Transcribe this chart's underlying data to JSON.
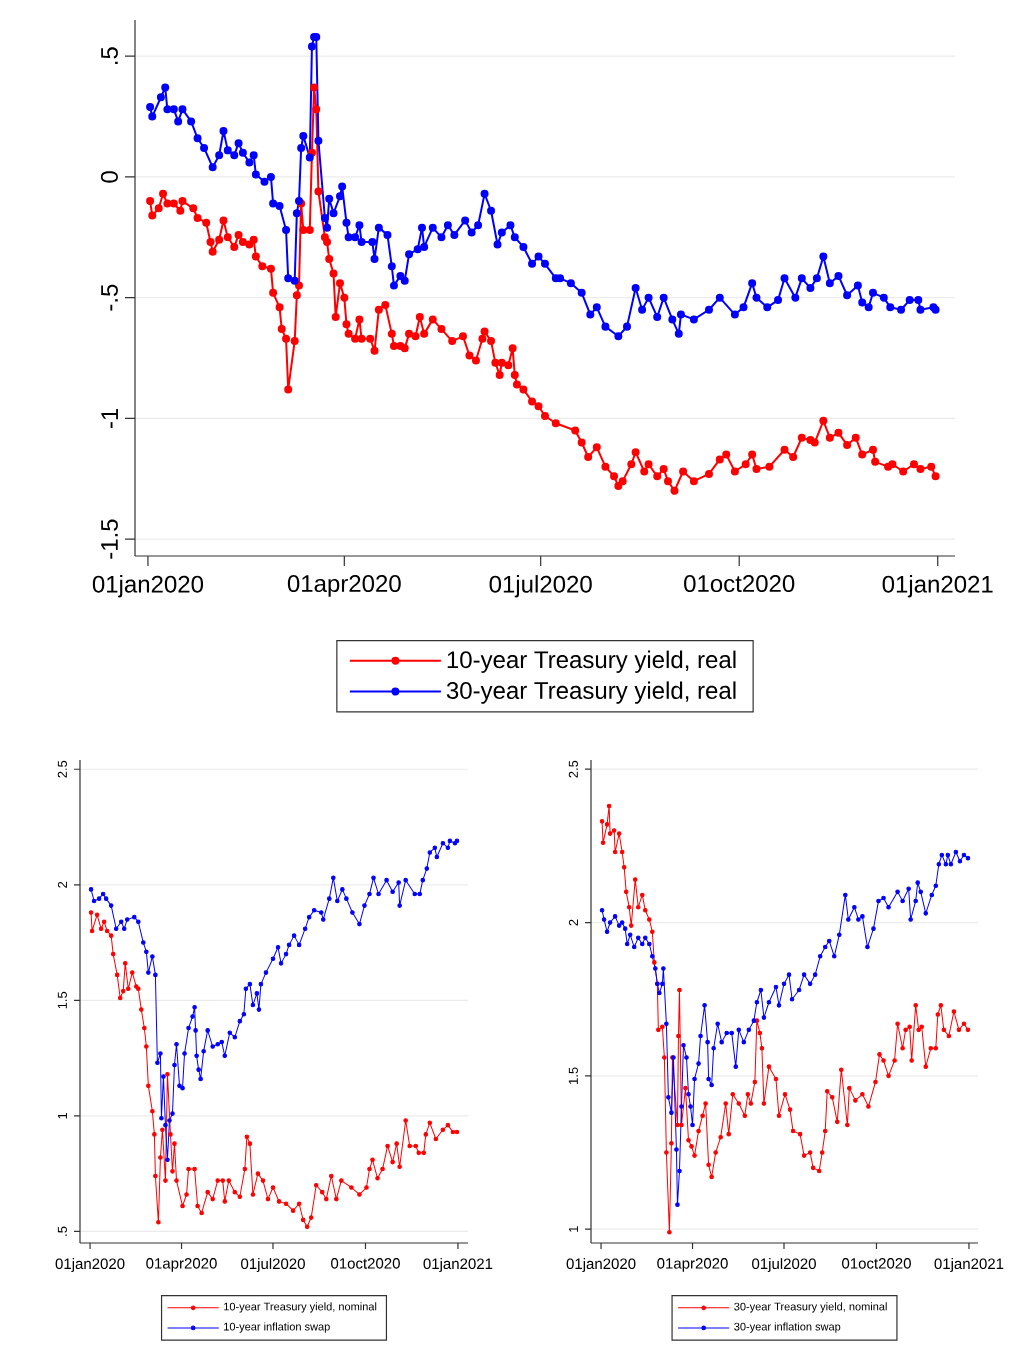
{
  "chart_data": [
    {
      "type": "line",
      "xlim": [
        "2019-12-26",
        "2021-01-09"
      ],
      "ylim": [
        -1.57,
        0.65
      ],
      "xticks": [
        {
          "value": "2020-01-01",
          "label": "01jan2020"
        },
        {
          "value": "2020-04-01",
          "label": "01apr2020"
        },
        {
          "value": "2020-07-01",
          "label": "01jul2020"
        },
        {
          "value": "2020-10-01",
          "label": "01oct2020"
        },
        {
          "value": "2021-01-01",
          "label": "01jan2021"
        }
      ],
      "yticks": [
        {
          "value": 0.5,
          "label": ".5"
        },
        0,
        {
          "value": -0.5,
          "label": "-.5"
        },
        -1,
        {
          "value": -1.5,
          "label": "-1.5"
        }
      ],
      "grid": "y",
      "legend": "bottom",
      "marker": "circle",
      "line_style": "solid",
      "series": [
        {
          "name": "10-year Treasury yield, real",
          "color": "#ff0000",
          "x": [
            "2020-01-02",
            "2020-01-03",
            "2020-01-06",
            "2020-01-08",
            "2020-01-10",
            "2020-01-13",
            "2020-01-16",
            "2020-01-17",
            "2020-01-22",
            "2020-01-24",
            "2020-01-28",
            "2020-01-30",
            "2020-01-31",
            "2020-02-03",
            "2020-02-05",
            "2020-02-07",
            "2020-02-10",
            "2020-02-12",
            "2020-02-14",
            "2020-02-17",
            "2020-02-19",
            "2020-02-20",
            "2020-02-23",
            "2020-02-27",
            "2020-02-28",
            "2020-03-02",
            "2020-03-03",
            "2020-03-05",
            "2020-03-06",
            "2020-03-09",
            "2020-03-10",
            "2020-03-11",
            "2020-03-12",
            "2020-03-13",
            "2020-03-16",
            "2020-03-17",
            "2020-03-18",
            "2020-03-19",
            "2020-03-20",
            "2020-03-23",
            "2020-03-24",
            "2020-03-25",
            "2020-03-27",
            "2020-03-28",
            "2020-03-30",
            "2020-04-01",
            "2020-04-02",
            "2020-04-03",
            "2020-04-06",
            "2020-04-08",
            "2020-04-09",
            "2020-04-13",
            "2020-04-15",
            "2020-04-17",
            "2020-04-20",
            "2020-04-23",
            "2020-04-24",
            "2020-04-27",
            "2020-04-29",
            "2020-05-01",
            "2020-05-04",
            "2020-05-06",
            "2020-05-08",
            "2020-05-12",
            "2020-05-16",
            "2020-05-21",
            "2020-05-26",
            "2020-05-29",
            "2020-06-01",
            "2020-06-04",
            "2020-06-05",
            "2020-06-08",
            "2020-06-10",
            "2020-06-12",
            "2020-06-13",
            "2020-06-16",
            "2020-06-18",
            "2020-06-19",
            "2020-06-20",
            "2020-06-23",
            "2020-06-27",
            "2020-06-30",
            "2020-07-03",
            "2020-07-08",
            "2020-07-17",
            "2020-07-20",
            "2020-07-23",
            "2020-07-27",
            "2020-07-31",
            "2020-08-04",
            "2020-08-06",
            "2020-08-08",
            "2020-08-12",
            "2020-08-14",
            "2020-08-18",
            "2020-08-20",
            "2020-08-24",
            "2020-08-27",
            "2020-08-29",
            "2020-09-01",
            "2020-09-05",
            "2020-09-10",
            "2020-09-17",
            "2020-09-22",
            "2020-09-25",
            "2020-09-29",
            "2020-10-04",
            "2020-10-07",
            "2020-10-09",
            "2020-10-15",
            "2020-10-22",
            "2020-10-26",
            "2020-10-30",
            "2020-11-03",
            "2020-11-05",
            "2020-11-09",
            "2020-11-12",
            "2020-11-16",
            "2020-11-20",
            "2020-11-24",
            "2020-11-27",
            "2020-12-02",
            "2020-12-03",
            "2020-12-09",
            "2020-12-11",
            "2020-12-16",
            "2020-12-21",
            "2020-12-24",
            "2020-12-29",
            "2020-12-31"
          ],
          "values": [
            -0.1,
            -0.16,
            -0.13,
            -0.07,
            -0.11,
            -0.11,
            -0.14,
            -0.1,
            -0.13,
            -0.17,
            -0.19,
            -0.27,
            -0.31,
            -0.26,
            -0.18,
            -0.25,
            -0.29,
            -0.24,
            -0.27,
            -0.28,
            -0.26,
            -0.33,
            -0.37,
            -0.38,
            -0.48,
            -0.54,
            -0.63,
            -0.67,
            -0.88,
            -0.68,
            -0.49,
            -0.45,
            -0.11,
            -0.22,
            -0.22,
            0.1,
            0.37,
            0.28,
            -0.06,
            -0.25,
            -0.27,
            -0.34,
            -0.4,
            -0.58,
            -0.44,
            -0.5,
            -0.61,
            -0.65,
            -0.67,
            -0.59,
            -0.67,
            -0.67,
            -0.72,
            -0.55,
            -0.53,
            -0.65,
            -0.7,
            -0.7,
            -0.71,
            -0.65,
            -0.66,
            -0.58,
            -0.65,
            -0.59,
            -0.63,
            -0.68,
            -0.66,
            -0.74,
            -0.76,
            -0.67,
            -0.64,
            -0.68,
            -0.77,
            -0.82,
            -0.77,
            -0.78,
            -0.71,
            -0.82,
            -0.86,
            -0.88,
            -0.93,
            -0.95,
            -0.99,
            -1.02,
            -1.05,
            -1.1,
            -1.16,
            -1.12,
            -1.2,
            -1.24,
            -1.28,
            -1.26,
            -1.19,
            -1.14,
            -1.22,
            -1.19,
            -1.24,
            -1.21,
            -1.26,
            -1.3,
            -1.22,
            -1.26,
            -1.23,
            -1.17,
            -1.15,
            -1.22,
            -1.19,
            -1.15,
            -1.21,
            -1.2,
            -1.13,
            -1.16,
            -1.08,
            -1.09,
            -1.1,
            -1.01,
            -1.08,
            -1.06,
            -1.11,
            -1.08,
            -1.15,
            -1.13,
            -1.18,
            -1.2,
            -1.19,
            -1.22,
            -1.19,
            -1.21,
            -1.2,
            -1.24
          ]
        },
        {
          "name": "30-year Treasury yield, real",
          "color": "#0000ff",
          "x": [
            "2020-01-02",
            "2020-01-03",
            "2020-01-07",
            "2020-01-09",
            "2020-01-10",
            "2020-01-13",
            "2020-01-15",
            "2020-01-17",
            "2020-01-21",
            "2020-01-24",
            "2020-01-27",
            "2020-01-31",
            "2020-02-03",
            "2020-02-05",
            "2020-02-07",
            "2020-02-10",
            "2020-02-12",
            "2020-02-14",
            "2020-02-17",
            "2020-02-19",
            "2020-02-20",
            "2020-02-24",
            "2020-02-27",
            "2020-02-28",
            "2020-03-02",
            "2020-03-05",
            "2020-03-06",
            "2020-03-09",
            "2020-03-10",
            "2020-03-11",
            "2020-03-12",
            "2020-03-13",
            "2020-03-16",
            "2020-03-17",
            "2020-03-18",
            "2020-03-19",
            "2020-03-20",
            "2020-03-23",
            "2020-03-24",
            "2020-03-25",
            "2020-03-27",
            "2020-03-30",
            "2020-03-31",
            "2020-04-02",
            "2020-04-03",
            "2020-04-06",
            "2020-04-08",
            "2020-04-09",
            "2020-04-14",
            "2020-04-15",
            "2020-04-17",
            "2020-04-21",
            "2020-04-23",
            "2020-04-24",
            "2020-04-27",
            "2020-04-29",
            "2020-05-01",
            "2020-05-05",
            "2020-05-07",
            "2020-05-08",
            "2020-05-12",
            "2020-05-16",
            "2020-05-19",
            "2020-05-22",
            "2020-05-27",
            "2020-05-30",
            "2020-06-02",
            "2020-06-05",
            "2020-06-08",
            "2020-06-11",
            "2020-06-13",
            "2020-06-17",
            "2020-06-19",
            "2020-06-23",
            "2020-06-27",
            "2020-06-30",
            "2020-07-03",
            "2020-07-08",
            "2020-07-10",
            "2020-07-15",
            "2020-07-20",
            "2020-07-24",
            "2020-07-27",
            "2020-07-31",
            "2020-08-06",
            "2020-08-10",
            "2020-08-14",
            "2020-08-17",
            "2020-08-20",
            "2020-08-24",
            "2020-08-27",
            "2020-08-31",
            "2020-09-03",
            "2020-09-04",
            "2020-09-10",
            "2020-09-17",
            "2020-09-22",
            "2020-09-29",
            "2020-10-03",
            "2020-10-07",
            "2020-10-09",
            "2020-10-14",
            "2020-10-19",
            "2020-10-22",
            "2020-10-27",
            "2020-10-30",
            "2020-11-03",
            "2020-11-06",
            "2020-11-09",
            "2020-11-12",
            "2020-11-16",
            "2020-11-20",
            "2020-11-25",
            "2020-11-27",
            "2020-11-30",
            "2020-12-02",
            "2020-12-07",
            "2020-12-10",
            "2020-12-15",
            "2020-12-19",
            "2020-12-23",
            "2020-12-24",
            "2020-12-30",
            "2020-12-31"
          ],
          "values": [
            0.29,
            0.25,
            0.33,
            0.37,
            0.28,
            0.28,
            0.23,
            0.28,
            0.23,
            0.16,
            0.12,
            0.04,
            0.09,
            0.19,
            0.11,
            0.09,
            0.14,
            0.1,
            0.06,
            0.09,
            0.01,
            -0.02,
            0.0,
            -0.11,
            -0.12,
            -0.22,
            -0.42,
            -0.43,
            -0.15,
            -0.1,
            0.12,
            0.17,
            0.08,
            0.54,
            0.58,
            0.58,
            0.15,
            -0.17,
            -0.21,
            -0.09,
            -0.15,
            -0.08,
            -0.04,
            -0.19,
            -0.25,
            -0.25,
            -0.2,
            -0.27,
            -0.27,
            -0.34,
            -0.21,
            -0.24,
            -0.37,
            -0.45,
            -0.41,
            -0.43,
            -0.32,
            -0.3,
            -0.21,
            -0.29,
            -0.21,
            -0.25,
            -0.2,
            -0.24,
            -0.18,
            -0.23,
            -0.2,
            -0.07,
            -0.14,
            -0.28,
            -0.23,
            -0.2,
            -0.25,
            -0.29,
            -0.36,
            -0.33,
            -0.36,
            -0.42,
            -0.42,
            -0.44,
            -0.48,
            -0.57,
            -0.54,
            -0.62,
            -0.66,
            -0.62,
            -0.46,
            -0.55,
            -0.5,
            -0.58,
            -0.5,
            -0.59,
            -0.65,
            -0.57,
            -0.59,
            -0.55,
            -0.5,
            -0.57,
            -0.54,
            -0.44,
            -0.5,
            -0.54,
            -0.51,
            -0.42,
            -0.5,
            -0.42,
            -0.46,
            -0.42,
            -0.33,
            -0.44,
            -0.41,
            -0.49,
            -0.45,
            -0.52,
            -0.54,
            -0.48,
            -0.5,
            -0.54,
            -0.55,
            -0.51,
            -0.51,
            -0.55,
            -0.54,
            -0.55
          ]
        }
      ]
    },
    {
      "type": "line",
      "xlim": [
        "2019-12-22",
        "2021-01-11"
      ],
      "ylim": [
        0.45,
        2.54
      ],
      "xticks": [
        {
          "value": "2020-01-01",
          "label": "01jan2020"
        },
        {
          "value": "2020-04-01",
          "label": "01apr2020"
        },
        {
          "value": "2020-07-01",
          "label": "01jul2020"
        },
        {
          "value": "2020-10-01",
          "label": "01oct2020"
        },
        {
          "value": "2021-01-01",
          "label": "01jan2021"
        }
      ],
      "yticks": [
        {
          "value": 0.5,
          "label": ".5"
        },
        1,
        1.5,
        2,
        2.5
      ],
      "grid": "y",
      "legend": "bottom",
      "marker": "circle",
      "line_style": "solid",
      "series": [
        {
          "name": "10-year Treasury yield, nominal",
          "color": "#ff0000",
          "x": [
            "2020-01-02",
            "2020-01-03",
            "2020-01-08",
            "2020-01-12",
            "2020-01-15",
            "2020-01-18",
            "2020-01-22",
            "2020-01-24",
            "2020-01-28",
            "2020-01-31",
            "2020-02-03",
            "2020-02-05",
            "2020-02-08",
            "2020-02-12",
            "2020-02-16",
            "2020-02-18",
            "2020-02-21",
            "2020-02-24",
            "2020-02-26",
            "2020-02-28",
            "2020-03-03",
            "2020-03-05",
            "2020-03-06",
            "2020-03-09",
            "2020-03-11",
            "2020-03-13",
            "2020-03-16",
            "2020-03-18",
            "2020-03-21",
            "2020-03-23",
            "2020-03-25",
            "2020-03-27",
            "2020-04-02",
            "2020-04-06",
            "2020-04-08",
            "2020-04-14",
            "2020-04-17",
            "2020-04-21",
            "2020-04-27",
            "2020-05-02",
            "2020-05-07",
            "2020-05-12",
            "2020-05-14",
            "2020-05-18",
            "2020-05-24",
            "2020-05-29",
            "2020-06-03",
            "2020-06-05",
            "2020-06-08",
            "2020-06-11",
            "2020-06-16",
            "2020-06-21",
            "2020-06-26",
            "2020-07-01",
            "2020-07-07",
            "2020-07-14",
            "2020-07-21",
            "2020-07-27",
            "2020-07-31",
            "2020-08-04",
            "2020-08-08",
            "2020-08-13",
            "2020-08-19",
            "2020-08-23",
            "2020-08-28",
            "2020-09-02",
            "2020-09-07",
            "2020-09-17",
            "2020-09-25",
            "2020-10-02",
            "2020-10-05",
            "2020-10-08",
            "2020-10-13",
            "2020-10-18",
            "2020-10-23",
            "2020-10-28",
            "2020-11-01",
            "2020-11-04",
            "2020-11-10",
            "2020-11-14",
            "2020-11-20",
            "2020-11-23",
            "2020-11-28",
            "2020-11-30",
            "2020-12-04",
            "2020-12-10",
            "2020-12-17",
            "2020-12-22",
            "2020-12-27",
            "2020-12-31"
          ],
          "values": [
            1.88,
            1.8,
            1.87,
            1.81,
            1.84,
            1.8,
            1.78,
            1.7,
            1.61,
            1.51,
            1.54,
            1.66,
            1.55,
            1.62,
            1.56,
            1.55,
            1.46,
            1.38,
            1.3,
            1.13,
            1.02,
            0.92,
            0.74,
            0.54,
            0.82,
            0.94,
            0.72,
            1.18,
            0.92,
            0.76,
            0.88,
            0.72,
            0.61,
            0.66,
            0.77,
            0.77,
            0.61,
            0.58,
            0.67,
            0.64,
            0.72,
            0.72,
            0.63,
            0.72,
            0.67,
            0.65,
            0.77,
            0.91,
            0.88,
            0.66,
            0.75,
            0.72,
            0.64,
            0.69,
            0.63,
            0.62,
            0.59,
            0.62,
            0.55,
            0.52,
            0.56,
            0.7,
            0.67,
            0.64,
            0.74,
            0.64,
            0.72,
            0.69,
            0.66,
            0.69,
            0.77,
            0.81,
            0.73,
            0.77,
            0.87,
            0.8,
            0.88,
            0.78,
            0.98,
            0.87,
            0.87,
            0.84,
            0.84,
            0.92,
            0.97,
            0.9,
            0.94,
            0.96,
            0.93,
            0.93
          ]
        },
        {
          "name": "10-year inflation swap",
          "color": "#0000ff",
          "x": [
            "2020-01-02",
            "2020-01-05",
            "2020-01-10",
            "2020-01-14",
            "2020-01-17",
            "2020-01-22",
            "2020-01-27",
            "2020-02-01",
            "2020-02-04",
            "2020-02-07",
            "2020-02-14",
            "2020-02-18",
            "2020-02-23",
            "2020-02-26",
            "2020-02-28",
            "2020-03-03",
            "2020-03-06",
            "2020-03-08",
            "2020-03-11",
            "2020-03-12",
            "2020-03-14",
            "2020-03-16",
            "2020-03-18",
            "2020-03-20",
            "2020-03-23",
            "2020-03-25",
            "2020-03-27",
            "2020-03-30",
            "2020-04-02",
            "2020-04-04",
            "2020-04-08",
            "2020-04-12",
            "2020-04-14",
            "2020-04-15",
            "2020-04-16",
            "2020-04-18",
            "2020-04-20",
            "2020-04-23",
            "2020-04-27",
            "2020-05-02",
            "2020-05-07",
            "2020-05-11",
            "2020-05-14",
            "2020-05-19",
            "2020-05-24",
            "2020-05-29",
            "2020-06-02",
            "2020-06-04",
            "2020-06-08",
            "2020-06-11",
            "2020-06-15",
            "2020-06-17",
            "2020-06-19",
            "2020-06-24",
            "2020-07-01",
            "2020-07-06",
            "2020-07-09",
            "2020-07-14",
            "2020-07-17",
            "2020-07-22",
            "2020-07-27",
            "2020-08-02",
            "2020-08-06",
            "2020-08-11",
            "2020-08-18",
            "2020-08-20",
            "2020-08-26",
            "2020-08-30",
            "2020-09-03",
            "2020-09-08",
            "2020-09-12",
            "2020-09-18",
            "2020-09-25",
            "2020-09-30",
            "2020-10-05",
            "2020-10-09",
            "2020-10-14",
            "2020-10-22",
            "2020-10-28",
            "2020-11-03",
            "2020-11-04",
            "2020-11-10",
            "2020-11-19",
            "2020-11-24",
            "2020-11-27",
            "2020-12-01",
            "2020-12-04",
            "2020-12-09",
            "2020-12-11",
            "2020-12-17",
            "2020-12-22",
            "2020-12-24",
            "2020-12-29",
            "2020-12-31"
          ],
          "values": [
            1.98,
            1.93,
            1.94,
            1.96,
            1.94,
            1.91,
            1.81,
            1.84,
            1.81,
            1.85,
            1.86,
            1.84,
            1.75,
            1.71,
            1.62,
            1.69,
            1.61,
            1.23,
            1.27,
            0.99,
            1.17,
            0.96,
            0.81,
            0.98,
            1.01,
            1.22,
            1.31,
            1.13,
            1.12,
            1.27,
            1.38,
            1.43,
            1.47,
            1.37,
            1.26,
            1.2,
            1.16,
            1.28,
            1.37,
            1.3,
            1.31,
            1.32,
            1.26,
            1.36,
            1.34,
            1.41,
            1.44,
            1.55,
            1.57,
            1.48,
            1.53,
            1.46,
            1.57,
            1.62,
            1.68,
            1.73,
            1.66,
            1.7,
            1.74,
            1.78,
            1.74,
            1.81,
            1.86,
            1.89,
            1.88,
            1.85,
            1.94,
            2.03,
            1.93,
            1.98,
            1.94,
            1.88,
            1.83,
            1.91,
            1.96,
            2.03,
            1.96,
            2.02,
            1.97,
            2.01,
            1.91,
            2.02,
            1.96,
            1.96,
            2.02,
            2.07,
            2.14,
            2.16,
            2.12,
            2.18,
            2.16,
            2.19,
            2.18,
            2.19
          ]
        }
      ]
    },
    {
      "type": "line",
      "xlim": [
        "2019-12-22",
        "2021-01-10"
      ],
      "ylim": [
        0.955,
        2.53
      ],
      "xticks": [
        {
          "value": "2020-01-01",
          "label": "01jan2020"
        },
        {
          "value": "2020-04-01",
          "label": "01apr2020"
        },
        {
          "value": "2020-07-01",
          "label": "01jul2020"
        },
        {
          "value": "2020-10-01",
          "label": "01oct2020"
        },
        {
          "value": "2021-01-01",
          "label": "01jan2021"
        }
      ],
      "yticks": [
        1,
        1.5,
        2,
        2.5
      ],
      "grid": "y",
      "legend": "bottom",
      "marker": "circle",
      "line_style": "solid",
      "series": [
        {
          "name": "30-year Treasury yield, nominal",
          "color": "#ff0000",
          "x": [
            "2020-01-02",
            "2020-01-03",
            "2020-01-07",
            "2020-01-09",
            "2020-01-10",
            "2020-01-14",
            "2020-01-15",
            "2020-01-19",
            "2020-01-22",
            "2020-01-24",
            "2020-01-26",
            "2020-01-29",
            "2020-01-31",
            "2020-02-04",
            "2020-02-07",
            "2020-02-11",
            "2020-02-14",
            "2020-02-18",
            "2020-02-21",
            "2020-02-23",
            "2020-02-26",
            "2020-02-27",
            "2020-03-02",
            "2020-03-04",
            "2020-03-06",
            "2020-03-09",
            "2020-03-11",
            "2020-03-12",
            "2020-03-17",
            "2020-03-18",
            "2020-03-19",
            "2020-03-21",
            "2020-03-25",
            "2020-03-28",
            "2020-03-31",
            "2020-04-03",
            "2020-04-07",
            "2020-04-11",
            "2020-04-14",
            "2020-04-17",
            "2020-04-20",
            "2020-04-24",
            "2020-04-29",
            "2020-05-04",
            "2020-05-07",
            "2020-05-11",
            "2020-05-17",
            "2020-05-23",
            "2020-05-26",
            "2020-05-29",
            "2020-06-02",
            "2020-06-04",
            "2020-06-07",
            "2020-06-09",
            "2020-06-11",
            "2020-06-16",
            "2020-06-23",
            "2020-06-26",
            "2020-07-02",
            "2020-07-07",
            "2020-07-10",
            "2020-07-17",
            "2020-07-21",
            "2020-07-27",
            "2020-07-30",
            "2020-08-05",
            "2020-08-08",
            "2020-08-11",
            "2020-08-13",
            "2020-08-18",
            "2020-08-23",
            "2020-08-27",
            "2020-09-02",
            "2020-09-04",
            "2020-09-10",
            "2020-09-17",
            "2020-09-23",
            "2020-09-30",
            "2020-10-04",
            "2020-10-08",
            "2020-10-13",
            "2020-10-19",
            "2020-10-22",
            "2020-10-27",
            "2020-10-30",
            "2020-11-03",
            "2020-11-05",
            "2020-11-09",
            "2020-11-12",
            "2020-11-15",
            "2020-11-19",
            "2020-11-24",
            "2020-11-29",
            "2020-12-01",
            "2020-12-04",
            "2020-12-07",
            "2020-12-12",
            "2020-12-17",
            "2020-12-22",
            "2020-12-27",
            "2020-12-31"
          ],
          "values": [
            2.33,
            2.26,
            2.32,
            2.38,
            2.29,
            2.3,
            2.23,
            2.29,
            2.23,
            2.18,
            2.1,
            2.05,
            1.99,
            2.14,
            2.05,
            2.09,
            2.04,
            2.01,
            1.97,
            1.87,
            1.8,
            1.65,
            1.66,
            1.56,
            1.25,
            0.99,
            1.28,
            1.56,
            1.34,
            1.63,
            1.78,
            1.34,
            1.46,
            1.29,
            1.27,
            1.24,
            1.32,
            1.37,
            1.41,
            1.21,
            1.17,
            1.25,
            1.3,
            1.41,
            1.31,
            1.44,
            1.41,
            1.37,
            1.44,
            1.41,
            1.48,
            1.68,
            1.64,
            1.59,
            1.41,
            1.53,
            1.49,
            1.37,
            1.44,
            1.39,
            1.32,
            1.31,
            1.24,
            1.25,
            1.2,
            1.19,
            1.25,
            1.32,
            1.45,
            1.43,
            1.35,
            1.52,
            1.34,
            1.46,
            1.42,
            1.44,
            1.4,
            1.48,
            1.57,
            1.55,
            1.5,
            1.55,
            1.67,
            1.59,
            1.65,
            1.66,
            1.55,
            1.73,
            1.65,
            1.66,
            1.53,
            1.59,
            1.59,
            1.7,
            1.73,
            1.65,
            1.63,
            1.71,
            1.65,
            1.67,
            1.65
          ]
        },
        {
          "name": "30-year inflation swap",
          "color": "#0000ff",
          "x": [
            "2020-01-02",
            "2020-01-04",
            "2020-01-07",
            "2020-01-10",
            "2020-01-15",
            "2020-01-19",
            "2020-01-22",
            "2020-01-25",
            "2020-01-27",
            "2020-01-30",
            "2020-02-03",
            "2020-02-07",
            "2020-02-11",
            "2020-02-14",
            "2020-02-18",
            "2020-02-21",
            "2020-02-24",
            "2020-02-26",
            "2020-02-28",
            "2020-03-02",
            "2020-03-03",
            "2020-03-06",
            "2020-03-08",
            "2020-03-11",
            "2020-03-13",
            "2020-03-16",
            "2020-03-17",
            "2020-03-19",
            "2020-03-21",
            "2020-03-23",
            "2020-03-26",
            "2020-03-28",
            "2020-03-30",
            "2020-04-01",
            "2020-04-03",
            "2020-04-07",
            "2020-04-09",
            "2020-04-13",
            "2020-04-16",
            "2020-04-17",
            "2020-04-20",
            "2020-04-22",
            "2020-04-26",
            "2020-04-30",
            "2020-05-05",
            "2020-05-10",
            "2020-05-14",
            "2020-05-17",
            "2020-05-22",
            "2020-05-27",
            "2020-06-01",
            "2020-06-04",
            "2020-06-08",
            "2020-06-11",
            "2020-06-16",
            "2020-06-23",
            "2020-06-26",
            "2020-07-01",
            "2020-07-06",
            "2020-07-09",
            "2020-07-16",
            "2020-07-21",
            "2020-07-27",
            "2020-08-01",
            "2020-08-06",
            "2020-08-11",
            "2020-08-15",
            "2020-08-20",
            "2020-08-25",
            "2020-08-31",
            "2020-09-03",
            "2020-09-09",
            "2020-09-13",
            "2020-09-17",
            "2020-09-22",
            "2020-09-28",
            "2020-10-03",
            "2020-10-08",
            "2020-10-13",
            "2020-10-22",
            "2020-10-27",
            "2020-11-02",
            "2020-11-04",
            "2020-11-09",
            "2020-11-11",
            "2020-11-14",
            "2020-11-19",
            "2020-11-25",
            "2020-11-29",
            "2020-12-02",
            "2020-12-05",
            "2020-12-09",
            "2020-12-11",
            "2020-12-14",
            "2020-12-19",
            "2020-12-23",
            "2020-12-27",
            "2020-12-31"
          ],
          "values": [
            2.04,
            2.01,
            1.97,
            2.0,
            2.02,
            1.99,
            2.0,
            1.98,
            1.93,
            1.96,
            1.92,
            1.95,
            1.93,
            1.95,
            1.93,
            1.89,
            1.85,
            1.8,
            1.77,
            1.8,
            1.85,
            1.67,
            1.43,
            1.38,
            1.56,
            1.26,
            1.08,
            1.19,
            1.4,
            1.6,
            1.56,
            1.44,
            1.4,
            1.34,
            1.49,
            1.54,
            1.63,
            1.73,
            1.61,
            1.49,
            1.47,
            1.59,
            1.67,
            1.61,
            1.64,
            1.64,
            1.53,
            1.65,
            1.61,
            1.65,
            1.68,
            1.74,
            1.78,
            1.69,
            1.74,
            1.79,
            1.73,
            1.8,
            1.83,
            1.75,
            1.78,
            1.83,
            1.8,
            1.83,
            1.89,
            1.92,
            1.94,
            1.89,
            1.96,
            2.09,
            2.01,
            2.05,
            2.01,
            2.02,
            1.92,
            1.98,
            2.07,
            2.08,
            2.05,
            2.1,
            2.07,
            2.11,
            2.01,
            2.07,
            2.13,
            2.1,
            2.03,
            2.09,
            2.12,
            2.19,
            2.22,
            2.19,
            2.22,
            2.19,
            2.23,
            2.2,
            2.22,
            2.21
          ]
        }
      ]
    }
  ]
}
